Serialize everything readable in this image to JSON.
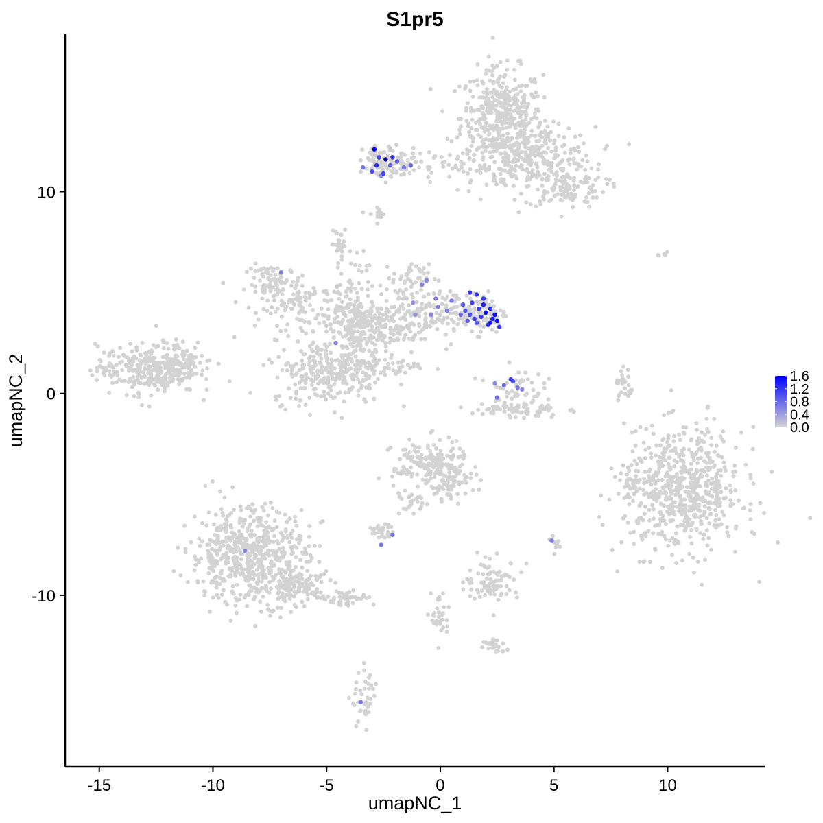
{
  "chart_data": {
    "type": "scatter",
    "title": "S1pr5",
    "xlabel": "umapNC_1",
    "ylabel": "umapNC_2",
    "xlim": [
      -16.5,
      14.3
    ],
    "ylim": [
      -18.5,
      17.8
    ],
    "xticks": [
      -15,
      -10,
      -5,
      0,
      5,
      10
    ],
    "xtick_labels": [
      "-15",
      "-10",
      "-5",
      "0",
      "5",
      "10"
    ],
    "yticks": [
      -10,
      0,
      10
    ],
    "ytick_labels": [
      "-10",
      "0",
      "10"
    ],
    "grid": false,
    "legend": {
      "placement": "right",
      "type": "colorbar",
      "range": [
        0.0,
        1.6
      ],
      "tick_values": [
        1.6,
        1.2,
        0.8,
        0.4,
        0.0
      ],
      "tick_labels": [
        "1.6",
        "1.2",
        "0.8",
        "0.4",
        "0.0"
      ],
      "low_color": "#d3d3d3",
      "high_color": "#0000ff"
    },
    "clusters_background": [
      {
        "cx": 2.7,
        "cy": 13.7,
        "sx": 0.9,
        "sy": 1.2,
        "n": 420
      },
      {
        "cx": 4.2,
        "cy": 11.8,
        "sx": 1.3,
        "sy": 0.7,
        "n": 230
      },
      {
        "cx": 5.5,
        "cy": 10.2,
        "sx": 0.9,
        "sy": 0.5,
        "n": 120
      },
      {
        "cx": 1.5,
        "cy": 11.2,
        "sx": 1.6,
        "sy": 0.5,
        "n": 90
      },
      {
        "cx": -2.6,
        "cy": 11.5,
        "sx": 0.4,
        "sy": 0.4,
        "n": 70
      },
      {
        "cx": -1.8,
        "cy": 11.4,
        "sx": 0.6,
        "sy": 0.3,
        "n": 50
      },
      {
        "cx": -2.8,
        "cy": 8.9,
        "sx": 0.2,
        "sy": 0.2,
        "n": 12
      },
      {
        "cx": -4.4,
        "cy": 7.4,
        "sx": 0.2,
        "sy": 0.3,
        "n": 20
      },
      {
        "cx": -7.3,
        "cy": 5.4,
        "sx": 0.6,
        "sy": 0.5,
        "n": 80
      },
      {
        "cx": -5.8,
        "cy": 4.4,
        "sx": 1.1,
        "sy": 0.6,
        "n": 110
      },
      {
        "cx": -3.5,
        "cy": 3.6,
        "sx": 1.0,
        "sy": 0.6,
        "n": 160
      },
      {
        "cx": -4.0,
        "cy": 5.5,
        "sx": 0.4,
        "sy": 1.0,
        "n": 40
      },
      {
        "cx": -1.4,
        "cy": 3.9,
        "sx": 1.0,
        "sy": 0.8,
        "n": 140
      },
      {
        "cx": -1.3,
        "cy": 5.8,
        "sx": 0.4,
        "sy": 0.3,
        "n": 35
      },
      {
        "cx": 0.7,
        "cy": 4.0,
        "sx": 0.8,
        "sy": 0.5,
        "n": 70
      },
      {
        "cx": 1.9,
        "cy": 4.0,
        "sx": 0.5,
        "sy": 0.5,
        "n": 70
      },
      {
        "cx": -5.0,
        "cy": 1.1,
        "sx": 1.2,
        "sy": 0.8,
        "n": 260
      },
      {
        "cx": -3.8,
        "cy": 1.8,
        "sx": 0.5,
        "sy": 1.0,
        "n": 90
      },
      {
        "cx": -3.1,
        "cy": 2.9,
        "sx": 0.5,
        "sy": 0.4,
        "n": 60
      },
      {
        "cx": -1.8,
        "cy": 1.3,
        "sx": 0.6,
        "sy": 0.2,
        "n": 30
      },
      {
        "cx": -12.9,
        "cy": 1.2,
        "sx": 1.1,
        "sy": 0.6,
        "n": 300
      },
      {
        "cx": -11.3,
        "cy": 1.6,
        "sx": 0.6,
        "sy": 0.5,
        "n": 70
      },
      {
        "cx": 3.3,
        "cy": 0.3,
        "sx": 0.6,
        "sy": 0.5,
        "n": 50
      },
      {
        "cx": 3.3,
        "cy": -0.8,
        "sx": 1.0,
        "sy": 0.2,
        "n": 70
      },
      {
        "cx": 8.1,
        "cy": 0.3,
        "sx": 0.2,
        "sy": 0.5,
        "n": 25
      },
      {
        "cx": 10.7,
        "cy": -4.8,
        "sx": 1.3,
        "sy": 1.5,
        "n": 650
      },
      {
        "cx": 8.4,
        "cy": -4.6,
        "sx": 0.2,
        "sy": 0.4,
        "n": 25
      },
      {
        "cx": -0.5,
        "cy": -3.5,
        "sx": 0.8,
        "sy": 0.6,
        "n": 170
      },
      {
        "cx": 0.5,
        "cy": -4.5,
        "sx": 0.5,
        "sy": 0.4,
        "n": 60
      },
      {
        "cx": -1.2,
        "cy": -5.5,
        "sx": 0.3,
        "sy": 0.4,
        "n": 25
      },
      {
        "cx": -2.6,
        "cy": -6.8,
        "sx": 0.3,
        "sy": 0.15,
        "n": 30
      },
      {
        "cx": -8.4,
        "cy": -8.0,
        "sx": 1.3,
        "sy": 1.2,
        "n": 600
      },
      {
        "cx": -6.3,
        "cy": -9.5,
        "sx": 0.8,
        "sy": 0.4,
        "n": 120
      },
      {
        "cx": -4.3,
        "cy": -10.1,
        "sx": 0.7,
        "sy": 0.2,
        "n": 50
      },
      {
        "cx": 2.3,
        "cy": -9.3,
        "sx": 0.6,
        "sy": 0.5,
        "n": 90
      },
      {
        "cx": 0.0,
        "cy": -11.0,
        "sx": 0.2,
        "sy": 0.7,
        "n": 30
      },
      {
        "cx": 2.3,
        "cy": -12.5,
        "sx": 0.3,
        "sy": 0.2,
        "n": 25
      },
      {
        "cx": -3.3,
        "cy": -15.2,
        "sx": 0.3,
        "sy": 0.7,
        "n": 40
      },
      {
        "cx": 5.1,
        "cy": -7.4,
        "sx": 0.1,
        "sy": 0.2,
        "n": 12
      },
      {
        "cx": 9.8,
        "cy": 6.8,
        "sx": 0.1,
        "sy": 0.1,
        "n": 5
      }
    ],
    "points_expressing": [
      {
        "x": -2.9,
        "y": 12.1,
        "v": 1.6
      },
      {
        "x": -2.4,
        "y": 11.6,
        "v": 1.8
      },
      {
        "x": -2.8,
        "y": 11.3,
        "v": 1.3
      },
      {
        "x": -2.5,
        "y": 10.9,
        "v": 1.1
      },
      {
        "x": -3.0,
        "y": 11.0,
        "v": 1.0
      },
      {
        "x": -2.1,
        "y": 11.7,
        "v": 1.2
      },
      {
        "x": -1.9,
        "y": 11.5,
        "v": 0.9
      },
      {
        "x": -1.3,
        "y": 11.3,
        "v": 0.8
      },
      {
        "x": -2.7,
        "y": 11.7,
        "v": 1.1
      },
      {
        "x": -3.4,
        "y": 11.2,
        "v": 0.7
      },
      {
        "x": -2.2,
        "y": 11.3,
        "v": 0.9
      },
      {
        "x": -1.6,
        "y": 11.2,
        "v": 0.7
      },
      {
        "x": -2.6,
        "y": 10.8,
        "v": 0.6
      },
      {
        "x": -7.0,
        "y": 6.0,
        "v": 0.6
      },
      {
        "x": -0.6,
        "y": 5.6,
        "v": 0.6
      },
      {
        "x": -0.8,
        "y": 5.4,
        "v": 0.6
      },
      {
        "x": -0.2,
        "y": 4.7,
        "v": 0.7
      },
      {
        "x": -1.2,
        "y": 4.5,
        "v": 0.5
      },
      {
        "x": 0.5,
        "y": 4.6,
        "v": 0.7
      },
      {
        "x": -1.1,
        "y": 3.9,
        "v": 0.5
      },
      {
        "x": -0.4,
        "y": 3.9,
        "v": 0.6
      },
      {
        "x": 0.9,
        "y": 3.9,
        "v": 0.8
      },
      {
        "x": 1.3,
        "y": 5.0,
        "v": 1.2
      },
      {
        "x": 1.6,
        "y": 4.9,
        "v": 1.3
      },
      {
        "x": 1.1,
        "y": 4.1,
        "v": 1.0
      },
      {
        "x": 1.4,
        "y": 4.5,
        "v": 1.1
      },
      {
        "x": 1.7,
        "y": 4.2,
        "v": 1.2
      },
      {
        "x": 1.9,
        "y": 4.4,
        "v": 1.4
      },
      {
        "x": 2.0,
        "y": 4.0,
        "v": 1.5
      },
      {
        "x": 2.3,
        "y": 3.7,
        "v": 1.4
      },
      {
        "x": 2.5,
        "y": 3.6,
        "v": 1.6
      },
      {
        "x": 2.2,
        "y": 4.2,
        "v": 1.3
      },
      {
        "x": 1.5,
        "y": 3.7,
        "v": 1.1
      },
      {
        "x": 1.8,
        "y": 3.8,
        "v": 1.2
      },
      {
        "x": 2.4,
        "y": 3.9,
        "v": 1.5
      },
      {
        "x": 1.2,
        "y": 3.6,
        "v": 0.9
      },
      {
        "x": 1.6,
        "y": 3.5,
        "v": 1.0
      },
      {
        "x": 2.1,
        "y": 3.4,
        "v": 1.3
      },
      {
        "x": 2.6,
        "y": 3.3,
        "v": 1.2
      },
      {
        "x": 1.9,
        "y": 4.7,
        "v": 1.2
      },
      {
        "x": 0.3,
        "y": 4.1,
        "v": 0.7
      },
      {
        "x": -0.1,
        "y": 4.3,
        "v": 0.6
      },
      {
        "x": 1.0,
        "y": 4.4,
        "v": 0.9
      },
      {
        "x": 2.2,
        "y": 3.5,
        "v": 1.4
      },
      {
        "x": 1.3,
        "y": 3.9,
        "v": 1.1
      },
      {
        "x": -4.6,
        "y": 2.5,
        "v": 0.6
      },
      {
        "x": 3.1,
        "y": 0.7,
        "v": 1.2
      },
      {
        "x": 3.2,
        "y": 0.6,
        "v": 1.0
      },
      {
        "x": 2.8,
        "y": 0.4,
        "v": 0.8
      },
      {
        "x": 3.4,
        "y": 0.3,
        "v": 0.7
      },
      {
        "x": 2.5,
        "y": -0.2,
        "v": 0.8
      },
      {
        "x": 3.6,
        "y": 0.2,
        "v": 0.6
      },
      {
        "x": 2.4,
        "y": 0.5,
        "v": 0.6
      },
      {
        "x": -8.6,
        "y": -7.8,
        "v": 0.6
      },
      {
        "x": -2.1,
        "y": -7.0,
        "v": 0.7
      },
      {
        "x": -2.6,
        "y": -7.5,
        "v": 0.7
      },
      {
        "x": 4.9,
        "y": -7.3,
        "v": 0.7
      },
      {
        "x": -3.5,
        "y": -15.3,
        "v": 0.7
      }
    ]
  }
}
